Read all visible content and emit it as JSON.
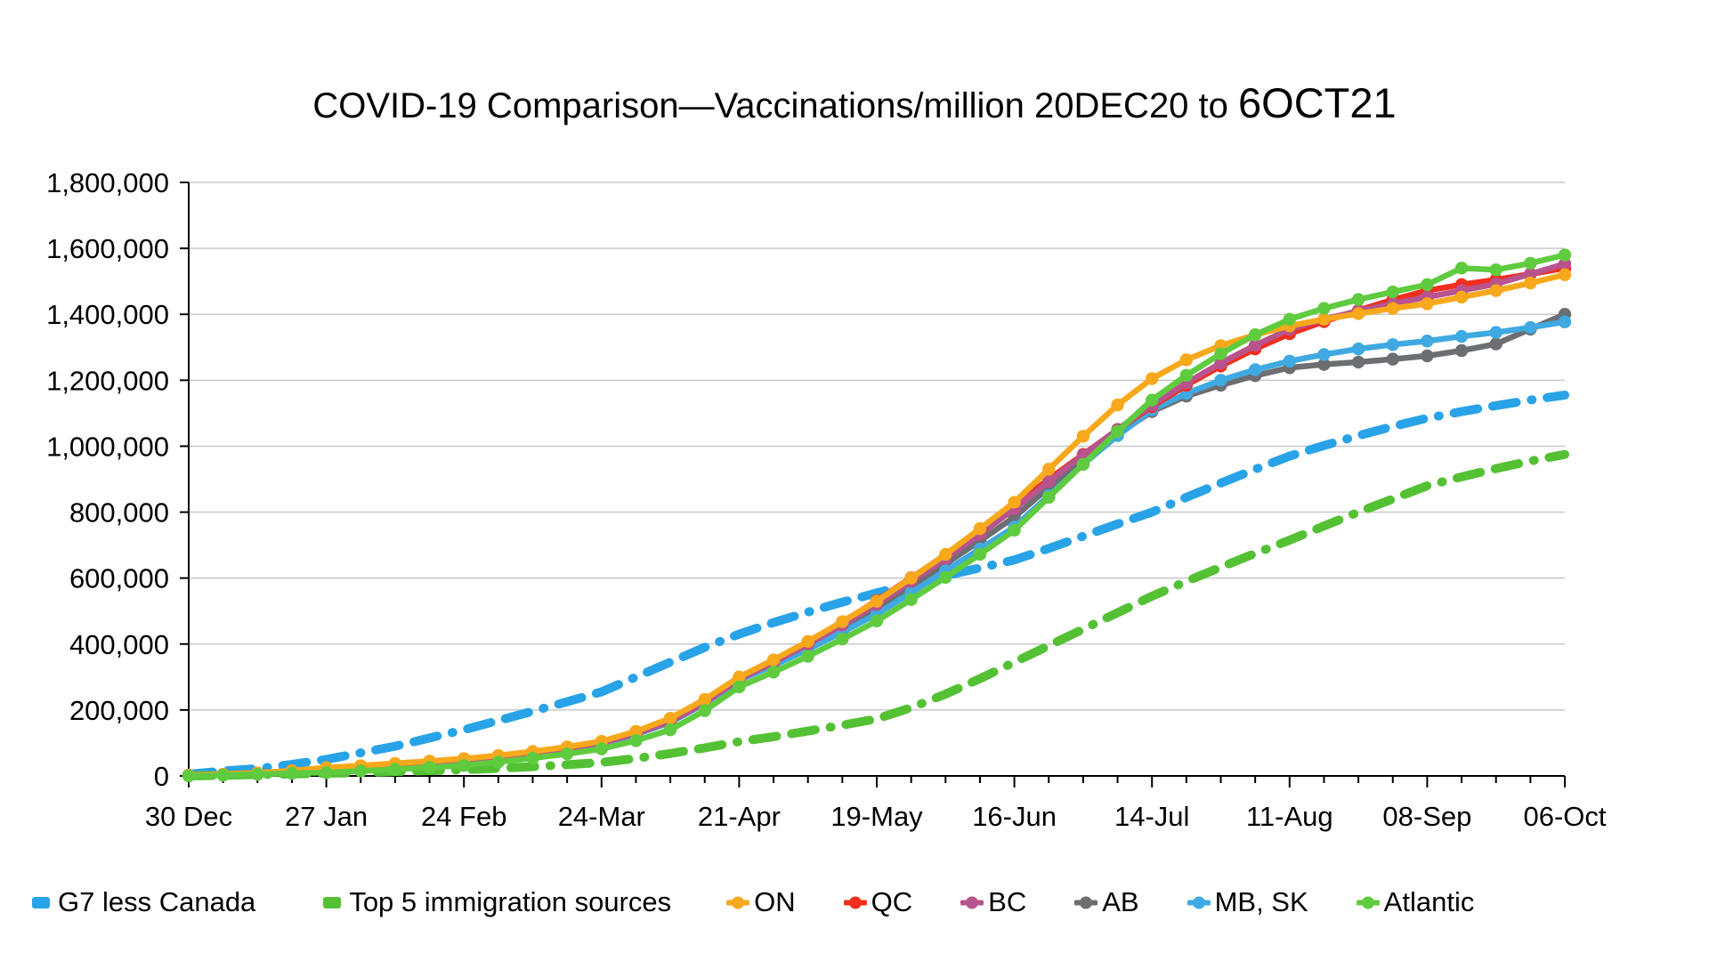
{
  "title": {
    "main": "COVID-19 Comparison—Vaccinations/million 20DEC20 to ",
    "emphasis": "6OCT21"
  },
  "chart_data": {
    "type": "line",
    "title": "COVID-19 Comparison—Vaccinations/million 20DEC20 to 6OCT21",
    "x_labels": [
      "30 Dec",
      "27 Jan",
      "24 Feb",
      "24-Mar",
      "21-Apr",
      "19-May",
      "16-Jun",
      "14-Jul",
      "11-Aug",
      "08-Sep",
      "06-Oct"
    ],
    "x_note": "weekly data points, one x label every 4 weeks",
    "n_points": 41,
    "points_per_label_interval": 4,
    "ylim": [
      0,
      1800000
    ],
    "y_tick_step": 200000,
    "y_tick_labels": [
      "0",
      "200,000",
      "400,000",
      "600,000",
      "800,000",
      "1,000,000",
      "1,200,000",
      "1,400,000",
      "1,600,000",
      "1,800,000"
    ],
    "grid": "horizontal-only",
    "grid_color": "#C9C9C9",
    "axis_color": "#000000",
    "legend_position": "bottom",
    "series": [
      {
        "name": "G7 less Canada",
        "color": "#29A3E7",
        "line_style": "dashed",
        "marker": "none",
        "values": [
          5000,
          15000,
          22000,
          35000,
          50000,
          70000,
          90000,
          115000,
          140000,
          168000,
          196000,
          225000,
          255000,
          300000,
          345000,
          390000,
          430000,
          465000,
          497000,
          527000,
          555000,
          582000,
          607000,
          631000,
          655000,
          690000,
          727000,
          764000,
          800000,
          845000,
          888000,
          930000,
          970000,
          1002000,
          1032000,
          1060000,
          1085000,
          1105000,
          1123000,
          1140000,
          1155000
        ]
      },
      {
        "name": "Top 5 immigration sources",
        "color": "#54C134",
        "line_style": "dashed",
        "marker": "none",
        "values": [
          0,
          2000,
          4000,
          6000,
          8000,
          10000,
          13000,
          16000,
          19000,
          23000,
          28000,
          34000,
          41000,
          53000,
          68000,
          85000,
          104000,
          119000,
          136000,
          154000,
          173000,
          207000,
          248000,
          295000,
          345000,
          395000,
          445000,
          495000,
          545000,
          590000,
          633000,
          675000,
          715000,
          758000,
          800000,
          840000,
          880000,
          907000,
          932000,
          955000,
          975000
        ]
      },
      {
        "name": "ON",
        "color": "#F7A81B",
        "line_style": "solid",
        "marker": "circle",
        "values": [
          2000,
          5000,
          9000,
          16000,
          25000,
          31000,
          38000,
          45000,
          52000,
          62000,
          74000,
          88000,
          105000,
          135000,
          175000,
          232000,
          300000,
          352000,
          408000,
          468000,
          530000,
          600000,
          672000,
          750000,
          830000,
          930000,
          1030000,
          1125000,
          1205000,
          1262000,
          1305000,
          1338000,
          1365000,
          1385000,
          1402000,
          1418000,
          1432000,
          1452000,
          1472000,
          1495000,
          1520000
        ]
      },
      {
        "name": "QC",
        "color": "#F22E1E",
        "line_style": "solid",
        "marker": "circle",
        "values": [
          2000,
          5000,
          9000,
          15000,
          24000,
          30000,
          37000,
          44000,
          52000,
          61000,
          73000,
          87000,
          104000,
          133000,
          172000,
          228000,
          298000,
          350000,
          406000,
          466000,
          532000,
          601000,
          670000,
          744000,
          820000,
          900000,
          975000,
          1050000,
          1120000,
          1185000,
          1243000,
          1295000,
          1341000,
          1378000,
          1412000,
          1444000,
          1472000,
          1490000,
          1505000,
          1522000,
          1540000
        ]
      },
      {
        "name": "BC",
        "color": "#B9538D",
        "line_style": "solid",
        "marker": "circle",
        "values": [
          2000,
          4000,
          8000,
          14000,
          23000,
          29000,
          35000,
          42000,
          50000,
          59000,
          70000,
          84000,
          100000,
          128000,
          165000,
          222000,
          293000,
          344000,
          399000,
          458000,
          520000,
          590000,
          660000,
          733000,
          810000,
          893000,
          973000,
          1051000,
          1125000,
          1192000,
          1252000,
          1306000,
          1355000,
          1385000,
          1410000,
          1432000,
          1452000,
          1472000,
          1492000,
          1522000,
          1553000
        ]
      },
      {
        "name": "AB",
        "color": "#6D6E71",
        "line_style": "solid",
        "marker": "circle",
        "values": [
          2000,
          4000,
          8000,
          14000,
          23000,
          29000,
          35000,
          42000,
          50000,
          59000,
          70000,
          84000,
          100000,
          127000,
          163000,
          220000,
          290000,
          338000,
          390000,
          448000,
          510000,
          576000,
          643000,
          713000,
          785000,
          875000,
          960000,
          1037000,
          1105000,
          1152000,
          1185000,
          1214000,
          1238000,
          1248000,
          1255000,
          1264000,
          1274000,
          1290000,
          1310000,
          1355000,
          1400000
        ]
      },
      {
        "name": "MB, SK",
        "color": "#3FA9E1",
        "line_style": "solid",
        "marker": "circle",
        "values": [
          2000,
          5000,
          9000,
          15000,
          24000,
          30000,
          36000,
          43000,
          50000,
          59000,
          70000,
          83000,
          98000,
          126000,
          162000,
          220000,
          290000,
          335000,
          384000,
          436000,
          491000,
          556000,
          622000,
          688000,
          755000,
          850000,
          945000,
          1032000,
          1110000,
          1160000,
          1200000,
          1232000,
          1258000,
          1278000,
          1295000,
          1308000,
          1319000,
          1333000,
          1345000,
          1360000,
          1377000
        ]
      },
      {
        "name": "Atlantic",
        "color": "#5FCB3F",
        "line_style": "solid",
        "marker": "circle",
        "values": [
          0,
          2000,
          5000,
          8000,
          10000,
          15000,
          20000,
          26000,
          32000,
          42000,
          54000,
          67000,
          82000,
          107000,
          140000,
          198000,
          270000,
          315000,
          363000,
          415000,
          470000,
          535000,
          602000,
          672000,
          745000,
          845000,
          945000,
          1045000,
          1140000,
          1215000,
          1280000,
          1338000,
          1385000,
          1418000,
          1445000,
          1468000,
          1490000,
          1540000,
          1535000,
          1555000,
          1580000
        ]
      }
    ]
  }
}
